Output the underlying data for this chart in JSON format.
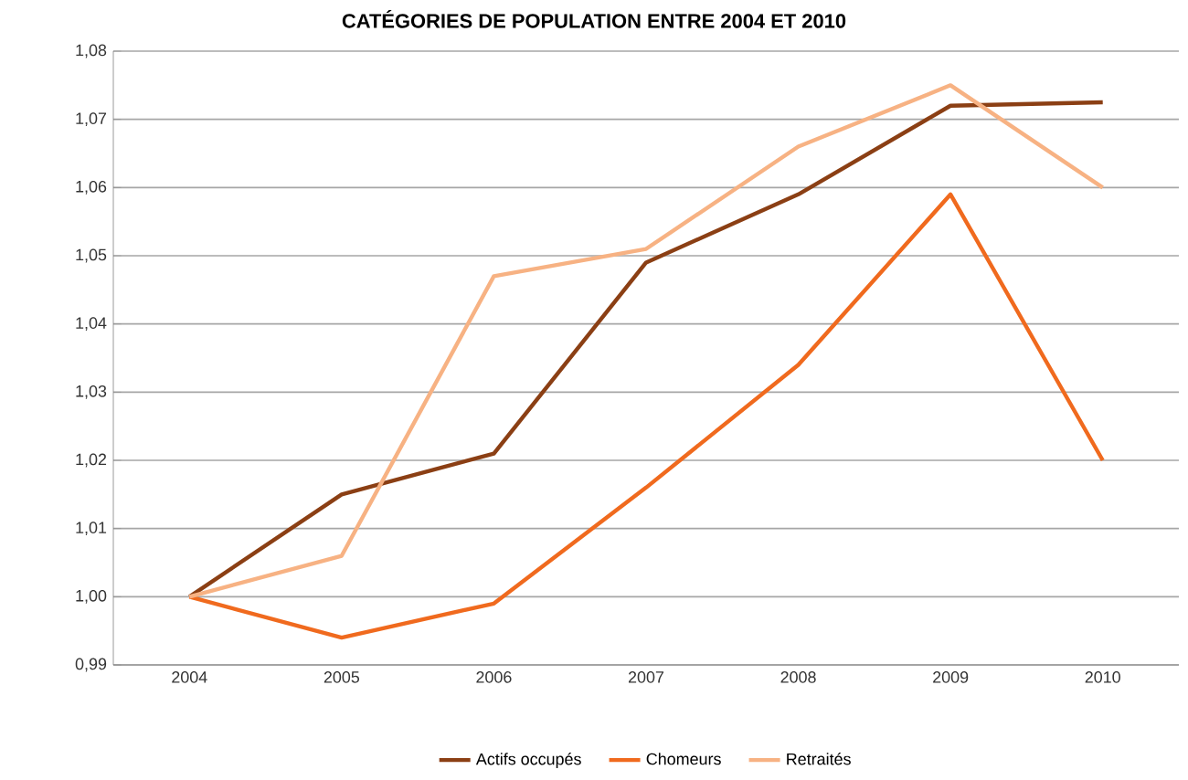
{
  "chart_data": {
    "type": "line",
    "title": "CATÉGORIES DE POPULATION ENTRE 2004 ET 2010",
    "categories": [
      "2004",
      "2005",
      "2006",
      "2007",
      "2008",
      "2009",
      "2010"
    ],
    "series": [
      {
        "name": "Actifs occupés",
        "color": "#8b3f14",
        "values": [
          1.0,
          1.015,
          1.021,
          1.049,
          1.059,
          1.072,
          1.0725
        ]
      },
      {
        "name": "Chomeurs",
        "color": "#f06a1e",
        "values": [
          1.0,
          0.994,
          0.999,
          1.016,
          1.034,
          1.059,
          1.02
        ]
      },
      {
        "name": "Retraités",
        "color": "#f7b283",
        "values": [
          1.0,
          1.006,
          1.047,
          1.051,
          1.066,
          1.075,
          1.06
        ]
      }
    ],
    "ylim": [
      0.99,
      1.08
    ],
    "yticks": [
      {
        "value": 0.99,
        "label": "0,99"
      },
      {
        "value": 1.0,
        "label": "1,00"
      },
      {
        "value": 1.01,
        "label": "1,01"
      },
      {
        "value": 1.02,
        "label": "1,02"
      },
      {
        "value": 1.03,
        "label": "1,03"
      },
      {
        "value": 1.04,
        "label": "1,04"
      },
      {
        "value": 1.05,
        "label": "1,05"
      },
      {
        "value": 1.06,
        "label": "1,06"
      },
      {
        "value": 1.07,
        "label": "1,07"
      },
      {
        "value": 1.08,
        "label": "1,08"
      }
    ],
    "grid": "y",
    "legend": "bottom",
    "marker": "none",
    "line_style": "solid"
  }
}
